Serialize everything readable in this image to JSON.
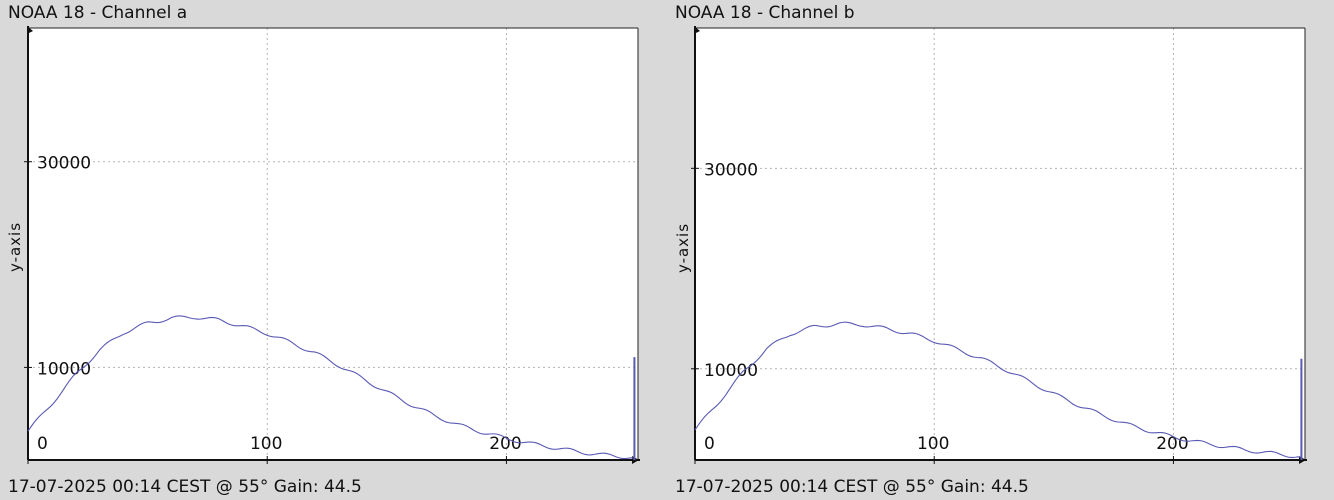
{
  "chart_data": [
    {
      "type": "line",
      "title": "NOAA 18 - Channel a",
      "footer": "17-07-2025 00:14 CEST @ 55° Gain: 44.5",
      "ylabel": "y-axis",
      "xlabel": "",
      "xlim": [
        0,
        255
      ],
      "ylim": [
        1000,
        43000
      ],
      "x_ticks": [
        0,
        100,
        200
      ],
      "y_ticks": [
        10000,
        30000
      ],
      "x_tick_labels": [
        "0",
        "100",
        "200"
      ],
      "y_tick_labels": [
        "10000",
        "30000"
      ],
      "grid": true,
      "line_color": "#5a5ab4",
      "series": [
        {
          "x": [
            0,
            10,
            20,
            30,
            40,
            50,
            60,
            70,
            80,
            90,
            100,
            110,
            120,
            130,
            140,
            150,
            160,
            170,
            180,
            190,
            200,
            210,
            220,
            230,
            240,
            250,
            253
          ],
          "y": [
            3800,
            6500,
            9300,
            11700,
            13400,
            14300,
            14800,
            14900,
            14600,
            14000,
            13300,
            12400,
            11400,
            10200,
            8900,
            7600,
            6400,
            5300,
            4400,
            3700,
            3100,
            2600,
            2200,
            1800,
            1500,
            1300,
            1200
          ]
        }
      ],
      "spike": {
        "x": 253.5,
        "y": 11000
      }
    },
    {
      "type": "line",
      "title": "NOAA 18 - Channel b",
      "footer": "17-07-2025 00:14 CEST @ 55° Gain: 44.5",
      "ylabel": "y-axis",
      "xlabel": "",
      "xlim": [
        0,
        255
      ],
      "ylim": [
        900,
        44000
      ],
      "x_ticks": [
        0,
        100,
        200
      ],
      "y_ticks": [
        10000,
        30000
      ],
      "x_tick_labels": [
        "0",
        "100",
        "200"
      ],
      "y_tick_labels": [
        "10000",
        "30000"
      ],
      "grid": true,
      "line_color": "#5a5ab4",
      "series": [
        {
          "x": [
            0,
            10,
            20,
            30,
            40,
            50,
            60,
            70,
            80,
            90,
            100,
            110,
            120,
            130,
            140,
            150,
            160,
            170,
            180,
            190,
            200,
            210,
            220,
            230,
            240,
            250,
            253
          ],
          "y": [
            3900,
            6700,
            9600,
            12000,
            13500,
            14200,
            14500,
            14400,
            14000,
            13500,
            12800,
            11900,
            11000,
            9900,
            8700,
            7500,
            6400,
            5400,
            4500,
            3800,
            3200,
            2700,
            2300,
            1900,
            1600,
            1300,
            1200
          ]
        }
      ],
      "spike": {
        "x": 253.5,
        "y": 11000
      }
    }
  ]
}
